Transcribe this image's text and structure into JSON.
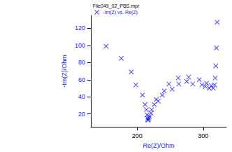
{
  "chart_data": {
    "type": "scatter",
    "title": "File049_02_PBS.mpr",
    "x_label": "Re(Z)/Ohm",
    "y_label": "-Im(Z)/Ohm",
    "xlim": [
      130,
      335
    ],
    "xticks": [
      200,
      300
    ],
    "ylim": [
      5,
      135
    ],
    "yticks": [
      20,
      40,
      60,
      80,
      100,
      120
    ],
    "grid": false,
    "legend": "top",
    "series": [
      {
        "name": "-Im(Z) vs. Re(Z)",
        "color": "#1a1aff",
        "marker": "x",
        "x": [
          153,
          176,
          191,
          198,
          208,
          212,
          214,
          215,
          216,
          216,
          217,
          218,
          219,
          221,
          222,
          226,
          229,
          232,
          238,
          241,
          248,
          253,
          262,
          263,
          275,
          278,
          284,
          294,
          298,
          303,
          305,
          309,
          312,
          315,
          317,
          318,
          319,
          320,
          321
        ],
        "values": [
          99,
          85,
          69,
          54,
          42,
          31,
          25,
          19,
          15,
          13,
          13,
          15,
          17,
          21,
          25,
          31,
          37,
          35,
          42,
          47,
          55,
          49,
          62,
          55,
          58,
          63,
          55,
          60,
          54,
          52,
          56,
          50,
          53,
          50,
          54,
          62,
          76,
          97,
          127
        ]
      }
    ]
  }
}
